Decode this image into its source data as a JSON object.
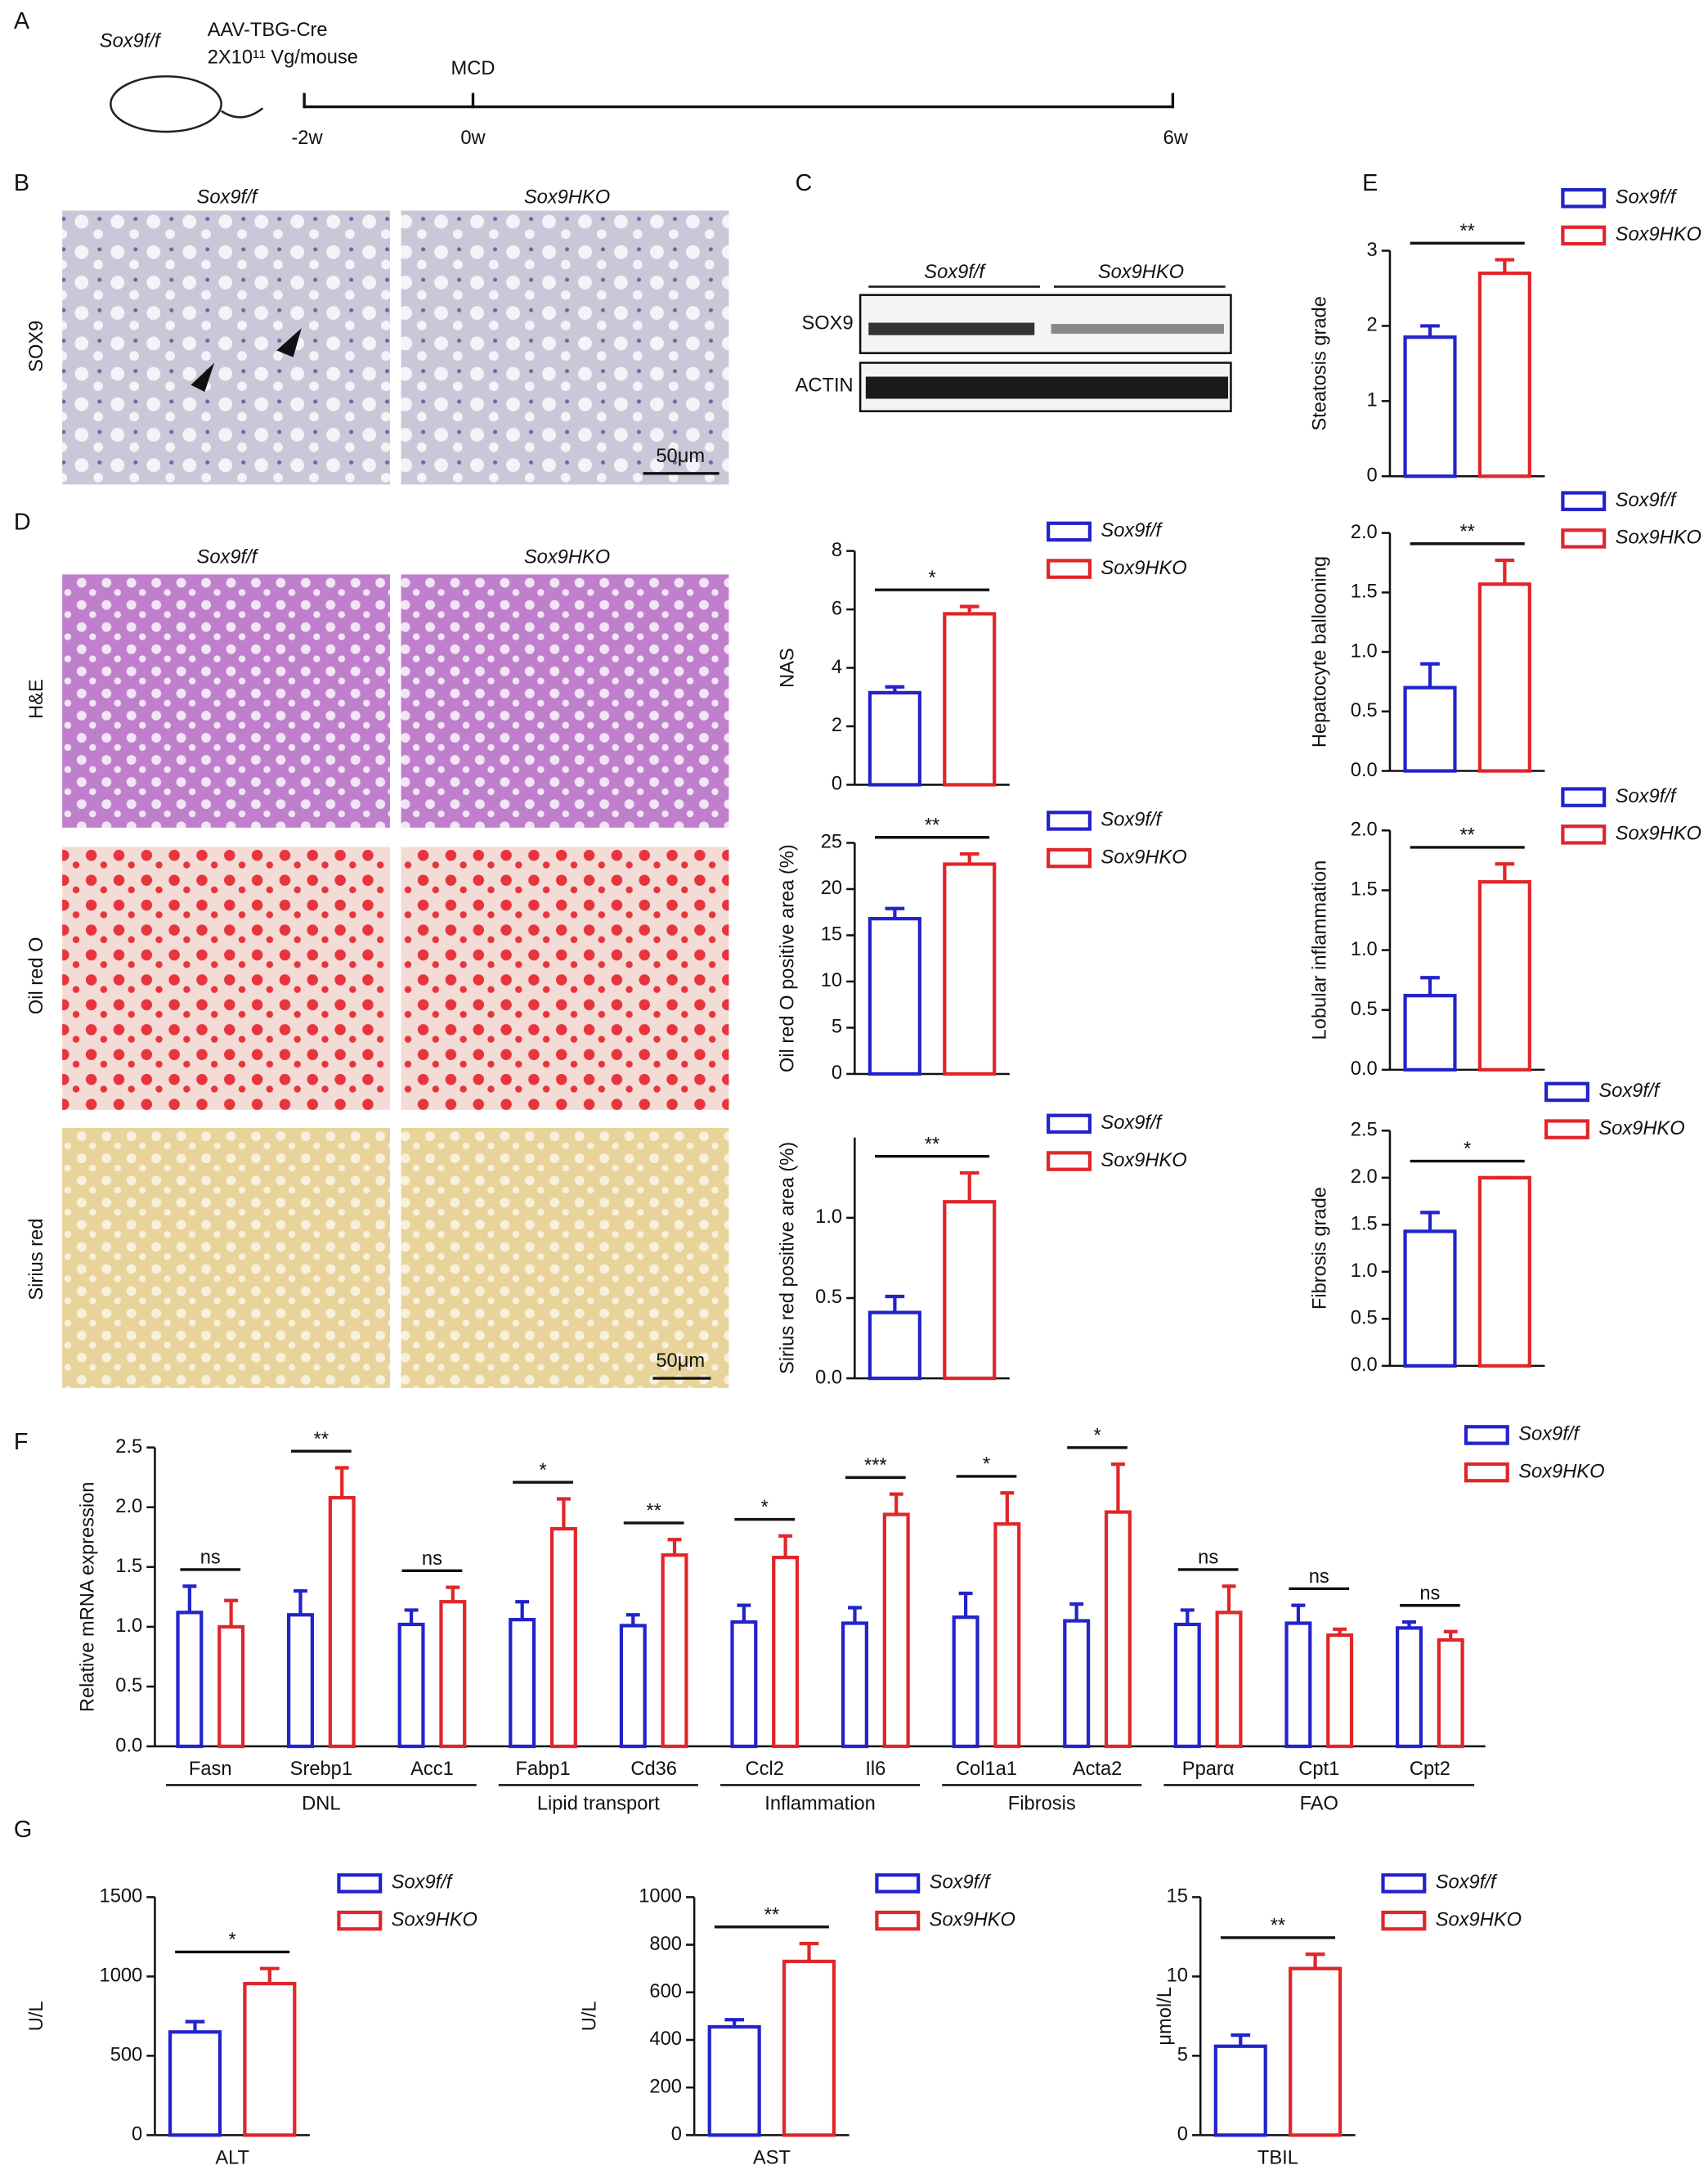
{
  "panel_labels": [
    "A",
    "B",
    "C",
    "D",
    "E",
    "F",
    "G"
  ],
  "timeline": {
    "mouse": "Sox9f/f",
    "virus": "AAV-TBG-Cre",
    "dose": "2X10¹¹ Vg/mouse",
    "diet": "MCD",
    "ticks": [
      "-2w",
      "0w",
      "6w"
    ]
  },
  "histology": {
    "groups": [
      "Sox9f/f",
      "Sox9HKO"
    ],
    "rows_b": [
      "SOX9"
    ],
    "rows_d": [
      "H&E",
      "Oil red O",
      "Sirius red"
    ],
    "scale": "50μm"
  },
  "western": {
    "groups": [
      "Sox9f/f",
      "Sox9HKO"
    ],
    "bands": [
      "SOX9",
      "ACTIN"
    ]
  },
  "chart_data": [
    {
      "type": "bar",
      "ylabel": "NAS",
      "categories": [
        null
      ],
      "ylim": [
        0,
        8
      ],
      "yticks": [
        0,
        2,
        4,
        6,
        8
      ],
      "significance": [
        "*"
      ],
      "series": [
        {
          "name": "Sox9f/f",
          "color": "#2323cc",
          "values": [
            3.15
          ],
          "errors": [
            0.2
          ]
        },
        {
          "name": "Sox9HKO",
          "color": "#e0262a",
          "values": [
            5.85
          ],
          "errors": [
            0.25
          ]
        }
      ]
    },
    {
      "type": "bar",
      "ylabel": "Oil red O positive area (%)",
      "categories": [
        null
      ],
      "ylim": [
        0,
        25
      ],
      "yticks": [
        0,
        5,
        10,
        15,
        20,
        25
      ],
      "significance": [
        "**"
      ],
      "series": [
        {
          "name": "Sox9f/f",
          "color": "#2323cc",
          "values": [
            16.8
          ],
          "errors": [
            1.1
          ]
        },
        {
          "name": "Sox9HKO",
          "color": "#e0262a",
          "values": [
            22.7
          ],
          "errors": [
            1.1
          ]
        }
      ]
    },
    {
      "type": "bar",
      "ylabel": "Sirius red positive area (%)",
      "categories": [
        null
      ],
      "ylim": [
        0,
        1.5
      ],
      "yticks": [
        {
          "value": 0,
          "label": "0.0"
        },
        {
          "value": 0.5,
          "label": "0.5"
        },
        {
          "value": 1,
          "label": "1.0"
        }
      ],
      "significance": [
        "**"
      ],
      "series": [
        {
          "name": "Sox9f/f",
          "color": "#2323cc",
          "values": [
            0.41
          ],
          "errors": [
            0.1
          ]
        },
        {
          "name": "Sox9HKO",
          "color": "#e0262a",
          "values": [
            1.1
          ],
          "errors": [
            0.18
          ]
        }
      ]
    },
    {
      "type": "bar",
      "ylabel": "Steatosis grade",
      "categories": [
        null
      ],
      "ylim": [
        0,
        3
      ],
      "yticks": [
        0,
        1,
        2,
        3
      ],
      "significance": [
        "**"
      ],
      "series": [
        {
          "name": "Sox9f/f",
          "color": "#2323cc",
          "values": [
            1.85
          ],
          "errors": [
            0.15
          ]
        },
        {
          "name": "Sox9HKO",
          "color": "#e0262a",
          "values": [
            2.7
          ],
          "errors": [
            0.18
          ]
        }
      ]
    },
    {
      "type": "bar",
      "ylabel": "Hepatocyte ballooning",
      "categories": [
        null
      ],
      "ylim": [
        0,
        2
      ],
      "yticks": [
        {
          "value": 0,
          "label": "0.0"
        },
        {
          "value": 0.5,
          "label": "0.5"
        },
        {
          "value": 1,
          "label": "1.0"
        },
        {
          "value": 1.5,
          "label": "1.5"
        },
        {
          "value": 2,
          "label": "2.0"
        }
      ],
      "significance": [
        "**"
      ],
      "series": [
        {
          "name": "Sox9f/f",
          "color": "#2323cc",
          "values": [
            0.7
          ],
          "errors": [
            0.2
          ]
        },
        {
          "name": "Sox9HKO",
          "color": "#e0262a",
          "values": [
            1.57
          ],
          "errors": [
            0.2
          ]
        }
      ]
    },
    {
      "type": "bar",
      "ylabel": "Lobular inflammation",
      "categories": [
        null
      ],
      "ylim": [
        0,
        2
      ],
      "yticks": [
        {
          "value": 0,
          "label": "0.0"
        },
        {
          "value": 0.5,
          "label": "0.5"
        },
        {
          "value": 1,
          "label": "1.0"
        },
        {
          "value": 1.5,
          "label": "1.5"
        },
        {
          "value": 2,
          "label": "2.0"
        }
      ],
      "significance": [
        "**"
      ],
      "series": [
        {
          "name": "Sox9f/f",
          "color": "#2323cc",
          "values": [
            0.62
          ],
          "errors": [
            0.15
          ]
        },
        {
          "name": "Sox9HKO",
          "color": "#e0262a",
          "values": [
            1.57
          ],
          "errors": [
            0.15
          ]
        }
      ]
    },
    {
      "type": "bar",
      "ylabel": "Fibrosis grade",
      "categories": [
        null
      ],
      "ylim": [
        0,
        2.5
      ],
      "yticks": [
        {
          "value": 0,
          "label": "0.0"
        },
        {
          "value": 0.5,
          "label": "0.5"
        },
        {
          "value": 1,
          "label": "1.0"
        },
        {
          "value": 1.5,
          "label": "1.5"
        },
        {
          "value": 2,
          "label": "2.0"
        },
        {
          "value": 2.5,
          "label": "2.5"
        }
      ],
      "significance": [
        "*"
      ],
      "series": [
        {
          "name": "Sox9f/f",
          "color": "#2323cc",
          "values": [
            1.43
          ],
          "errors": [
            0.2
          ]
        },
        {
          "name": "Sox9HKO",
          "color": "#e0262a",
          "values": [
            2.0
          ],
          "errors": [
            0
          ]
        }
      ]
    },
    {
      "type": "bar",
      "ylabel": "Relative mRNA expression",
      "categories": [
        "Fasn",
        "Srebp1",
        "Acc1",
        "Fabp1",
        "Cd36",
        "Ccl2",
        "Il6",
        "Col1a1",
        "Acta2",
        "Pparα",
        "Cpt1",
        "Cpt2"
      ],
      "groups": [
        {
          "label": "DNL",
          "size": 3
        },
        {
          "label": "Lipid transport",
          "size": 2
        },
        {
          "label": "Inflammation",
          "size": 2
        },
        {
          "label": "Fibrosis",
          "size": 2
        },
        {
          "label": "FAO",
          "size": 3
        }
      ],
      "ylim": [
        0,
        2.5
      ],
      "yticks": [
        {
          "value": 0,
          "label": "0.0"
        },
        {
          "value": 0.5,
          "label": "0.5"
        },
        {
          "value": 1,
          "label": "1.0"
        },
        {
          "value": 1.5,
          "label": "1.5"
        },
        {
          "value": 2,
          "label": "2.0"
        },
        {
          "value": 2.5,
          "label": "2.5"
        }
      ],
      "significance": [
        "ns",
        "**",
        "ns",
        "*",
        "**",
        "*",
        "***",
        "*",
        "*",
        "ns",
        "ns",
        "ns"
      ],
      "series": [
        {
          "name": "Sox9f/f",
          "color": "#2323cc",
          "values": [
            1.12,
            1.1,
            1.02,
            1.06,
            1.01,
            1.04,
            1.03,
            1.08,
            1.05,
            1.02,
            1.03,
            0.99
          ],
          "errors": [
            0.22,
            0.2,
            0.12,
            0.15,
            0.09,
            0.14,
            0.13,
            0.2,
            0.14,
            0.12,
            0.15,
            0.05
          ]
        },
        {
          "name": "Sox9HKO",
          "color": "#e0262a",
          "values": [
            1.0,
            2.08,
            1.21,
            1.82,
            1.6,
            1.58,
            1.94,
            1.86,
            1.96,
            1.12,
            0.93,
            0.89
          ],
          "errors": [
            0.22,
            0.25,
            0.12,
            0.25,
            0.13,
            0.18,
            0.17,
            0.26,
            0.4,
            0.22,
            0.05,
            0.07
          ]
        }
      ]
    },
    {
      "type": "bar",
      "ylabel": "U/L",
      "categories": [
        "ALT"
      ],
      "ylim": [
        0,
        1500
      ],
      "yticks": [
        0,
        500,
        1000,
        1500
      ],
      "significance": [
        "*"
      ],
      "series": [
        {
          "name": "Sox9f/f",
          "color": "#2323cc",
          "values": [
            650
          ],
          "errors": [
            65
          ]
        },
        {
          "name": "Sox9HKO",
          "color": "#e0262a",
          "values": [
            955
          ],
          "errors": [
            95
          ]
        }
      ]
    },
    {
      "type": "bar",
      "ylabel": "U/L",
      "categories": [
        "AST"
      ],
      "ylim": [
        0,
        1000
      ],
      "yticks": [
        0,
        200,
        400,
        600,
        800,
        1000
      ],
      "significance": [
        "**"
      ],
      "series": [
        {
          "name": "Sox9f/f",
          "color": "#2323cc",
          "values": [
            455
          ],
          "errors": [
            30
          ]
        },
        {
          "name": "Sox9HKO",
          "color": "#e0262a",
          "values": [
            730
          ],
          "errors": [
            75
          ]
        }
      ]
    },
    {
      "type": "bar",
      "ylabel": "μmol/L",
      "categories": [
        "TBIL"
      ],
      "ylim": [
        0,
        15
      ],
      "yticks": [
        0,
        5,
        10,
        15
      ],
      "significance": [
        "**"
      ],
      "series": [
        {
          "name": "Sox9f/f",
          "color": "#2323cc",
          "values": [
            5.6
          ],
          "errors": [
            0.7
          ]
        },
        {
          "name": "Sox9HKO",
          "color": "#e0262a",
          "values": [
            10.5
          ],
          "errors": [
            0.9
          ]
        }
      ]
    }
  ]
}
